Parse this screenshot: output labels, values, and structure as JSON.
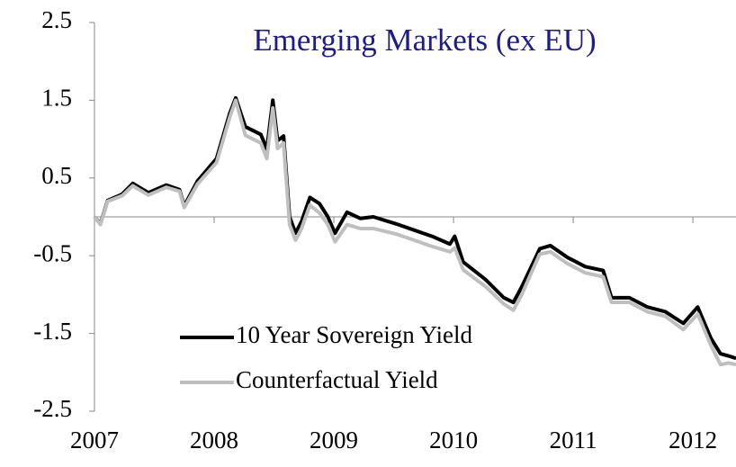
{
  "chart_data": {
    "type": "line",
    "title": "Emerging Markets (ex EU)",
    "x": [
      2007.0,
      2007.05,
      2007.11,
      2007.23,
      2007.32,
      2007.45,
      2007.6,
      2007.71,
      2007.75,
      2007.86,
      2008.02,
      2008.13,
      2008.18,
      2008.26,
      2008.39,
      2008.44,
      2008.49,
      2008.53,
      2008.58,
      2008.63,
      2008.68,
      2008.73,
      2008.8,
      2008.88,
      2008.95,
      2009.01,
      2009.11,
      2009.22,
      2009.33,
      2009.52,
      2009.67,
      2009.82,
      2009.97,
      2010.01,
      2010.08,
      2010.27,
      2010.42,
      2010.5,
      2010.57,
      2010.65,
      2010.72,
      2010.81,
      2010.95,
      2011.1,
      2011.25,
      2011.32,
      2011.47,
      2011.62,
      2011.77,
      2011.92,
      2012.04,
      2012.15,
      2012.23,
      2012.3,
      2012.36
    ],
    "series": [
      {
        "name": "10 Year Sovereign Yield",
        "color": "#000000",
        "values": [
          0,
          -0.09,
          0.21,
          0.29,
          0.43,
          0.31,
          0.41,
          0.35,
          0.14,
          0.46,
          0.75,
          1.33,
          1.53,
          1.16,
          1.06,
          0.87,
          1.5,
          0.98,
          1.04,
          0,
          -0.21,
          -0.06,
          0.25,
          0.17,
          0,
          -0.21,
          0.06,
          -0.02,
          0,
          -0.09,
          -0.17,
          -0.25,
          -0.35,
          -0.25,
          -0.58,
          -0.81,
          -1.04,
          -1.1,
          -0.9,
          -0.64,
          -0.41,
          -0.37,
          -0.52,
          -0.64,
          -0.69,
          -1.04,
          -1.04,
          -1.16,
          -1.22,
          -1.37,
          -1.16,
          -1.56,
          -1.76,
          -1.79,
          -1.82
        ]
      },
      {
        "name": "Counterfactual Yield",
        "color": "#bfbfbf",
        "values": [
          0,
          -0.1,
          0.2,
          0.27,
          0.4,
          0.28,
          0.38,
          0.33,
          0.12,
          0.42,
          0.7,
          1.28,
          1.5,
          1.05,
          0.95,
          0.75,
          1.4,
          0.88,
          0.95,
          -0.1,
          -0.3,
          -0.15,
          0.15,
          0.05,
          -0.1,
          -0.32,
          -0.1,
          -0.15,
          -0.15,
          -0.22,
          -0.3,
          -0.38,
          -0.45,
          -0.4,
          -0.68,
          -0.9,
          -1.12,
          -1.2,
          -1.0,
          -0.72,
          -0.48,
          -0.45,
          -0.6,
          -0.72,
          -0.77,
          -1.1,
          -1.1,
          -1.22,
          -1.28,
          -1.45,
          -1.25,
          -1.65,
          -1.9,
          -1.88,
          -1.9
        ]
      }
    ],
    "xlim": [
      2007,
      2012.36
    ],
    "xticks": [
      2007,
      2008,
      2009,
      2010,
      2011,
      2012
    ],
    "ylim": [
      -2.5,
      2.5
    ],
    "yticks": [
      2.5,
      1.5,
      0.5,
      -0.5,
      -1.5,
      -2.5
    ]
  }
}
